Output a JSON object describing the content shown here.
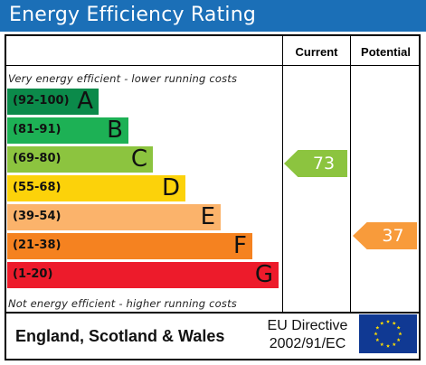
{
  "title": "Energy Efficiency Rating",
  "headers": {
    "current": "Current",
    "potential": "Potential"
  },
  "top_note": "Very energy efficient - lower running costs",
  "bottom_note": "Not energy efficient - higher running costs",
  "bands": [
    {
      "range": "(92-100)",
      "letter": "A",
      "color": "#0b8a4a"
    },
    {
      "range": "(81-91)",
      "letter": "B",
      "color": "#1db155"
    },
    {
      "range": "(69-80)",
      "letter": "C",
      "color": "#8cc43f"
    },
    {
      "range": "(55-68)",
      "letter": "D",
      "color": "#fcd20a"
    },
    {
      "range": "(39-54)",
      "letter": "E",
      "color": "#fbb36b"
    },
    {
      "range": "(21-38)",
      "letter": "F",
      "color": "#f58220"
    },
    {
      "range": "(1-20)",
      "letter": "G",
      "color": "#ed1b2b"
    }
  ],
  "current": {
    "value": "73",
    "color": "#8cc43f"
  },
  "potential": {
    "value": "37",
    "color": "#f89b3b"
  },
  "footer": {
    "region": "England, Scotland & Wales",
    "directive_line1": "EU Directive",
    "directive_line2": "2002/91/EC",
    "flag_color": "#103993",
    "star_color": "#ffdd00"
  }
}
